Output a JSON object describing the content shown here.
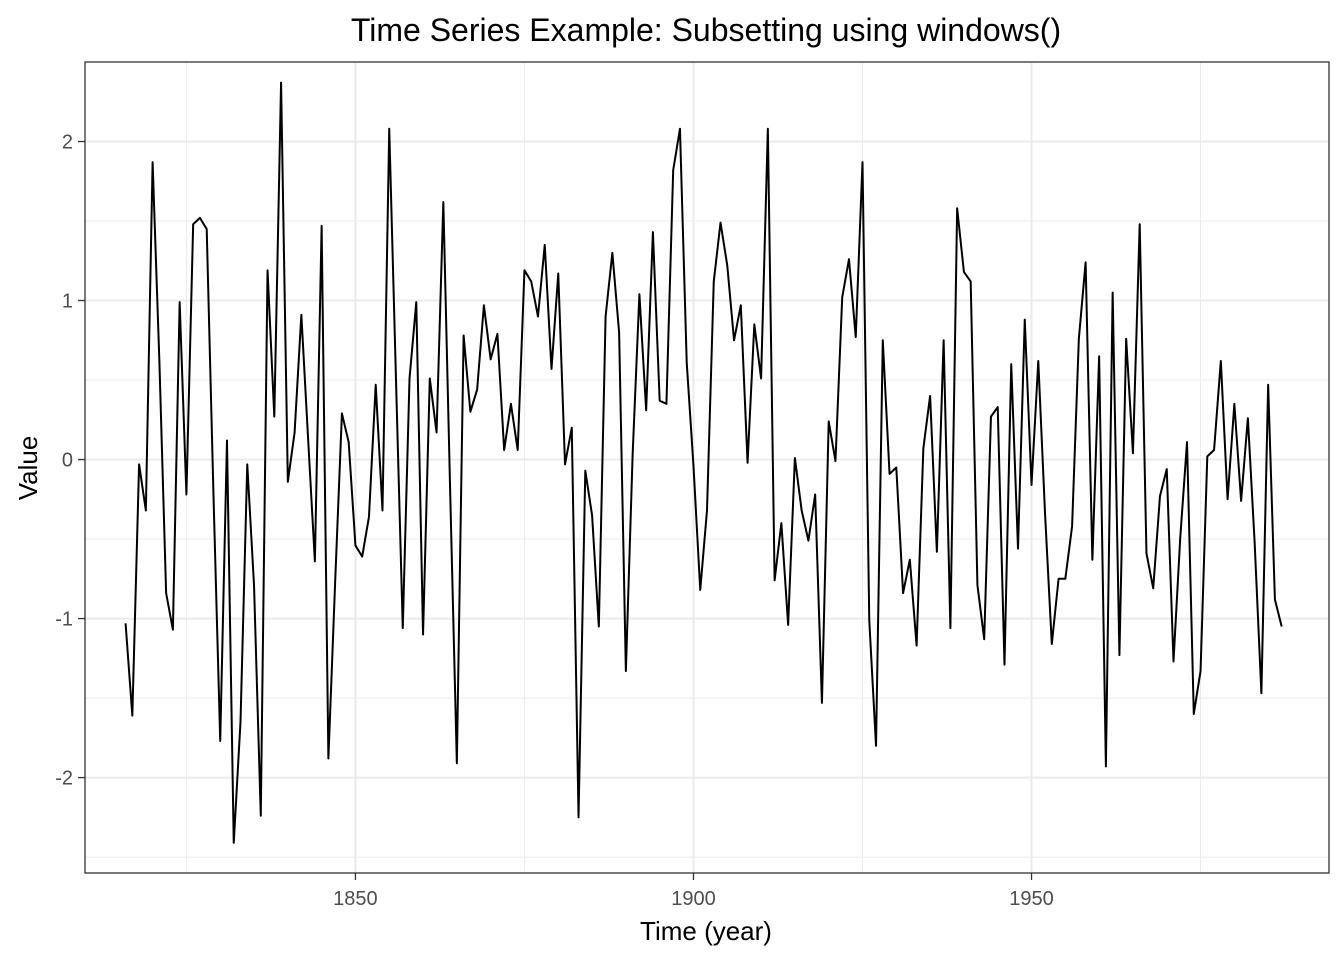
{
  "chart_data": {
    "type": "line",
    "title": "Time Series Example: Subsetting using windows()",
    "xlabel": "Time (year)",
    "ylabel": "Value",
    "xlim": [
      1810,
      1994
    ],
    "ylim": [
      -2.6,
      2.5
    ],
    "x_ticks": [
      1850,
      1900,
      1950
    ],
    "x_tick_labels": [
      "1850",
      "1900",
      "1950"
    ],
    "y_ticks": [
      -2,
      -1,
      0,
      1,
      2
    ],
    "y_tick_labels": [
      "-2",
      "-1",
      "0",
      "1",
      "2"
    ],
    "grid": true,
    "theme": "bw",
    "line_color": "#000000",
    "grid_color": "#ebebeb",
    "panel_border_color": "#333333",
    "x_start": 1816,
    "x_step": 1,
    "values": [
      -1.03,
      -1.61,
      -0.03,
      -0.32,
      1.87,
      0.62,
      -0.84,
      -1.07,
      0.99,
      -0.22,
      1.48,
      1.52,
      1.45,
      -0.22,
      -1.77,
      0.12,
      -2.41,
      -1.65,
      -0.03,
      -0.79,
      -2.24,
      1.19,
      0.27,
      2.37,
      -0.14,
      0.17,
      0.91,
      0.13,
      -0.64,
      1.47,
      -1.88,
      -0.77,
      0.29,
      0.11,
      -0.54,
      -0.61,
      -0.36,
      0.47,
      -0.32,
      2.08,
      0.5,
      -1.06,
      0.51,
      0.99,
      -1.1,
      0.51,
      0.17,
      1.62,
      -0.18,
      -1.91,
      0.78,
      0.3,
      0.44,
      0.97,
      0.63,
      0.79,
      0.06,
      0.35,
      0.06,
      1.19,
      1.12,
      0.9,
      1.35,
      0.57,
      1.17,
      -0.03,
      0.2,
      -2.25,
      -0.07,
      -0.35,
      -1.05,
      0.9,
      1.3,
      0.8,
      -1.33,
      0.03,
      1.04,
      0.31,
      1.43,
      0.37,
      0.35,
      1.82,
      2.08,
      0.61,
      -0.04,
      -0.82,
      -0.32,
      1.12,
      1.49,
      1.22,
      0.75,
      0.97,
      -0.02,
      0.85,
      0.51,
      2.08,
      -0.76,
      -0.4,
      -1.04,
      0.01,
      -0.32,
      -0.51,
      -0.22,
      -1.53,
      0.24,
      -0.01,
      1.02,
      1.26,
      0.77,
      1.87,
      -1.01,
      -1.8,
      0.75,
      -0.09,
      -0.05,
      -0.84,
      -0.63,
      -1.17,
      0.07,
      0.4,
      -0.58,
      0.75,
      -1.06,
      1.58,
      1.18,
      1.12,
      -0.79,
      -1.13,
      0.27,
      0.33,
      -1.29,
      0.6,
      -0.56,
      0.88,
      -0.16,
      0.62,
      -0.34,
      -1.16,
      -0.75,
      -0.75,
      -0.42,
      0.76,
      1.24,
      -0.63,
      0.65,
      -1.93,
      1.05,
      -1.23,
      0.76,
      0.04,
      1.48,
      -0.59,
      -0.81,
      -0.23,
      -0.06,
      -1.27,
      -0.49,
      0.11,
      -1.6,
      -1.33,
      0.02,
      0.06,
      0.62,
      -0.25,
      0.35,
      -0.26,
      0.26,
      -0.52,
      -1.47,
      0.47,
      -0.88,
      -1.05
    ]
  }
}
